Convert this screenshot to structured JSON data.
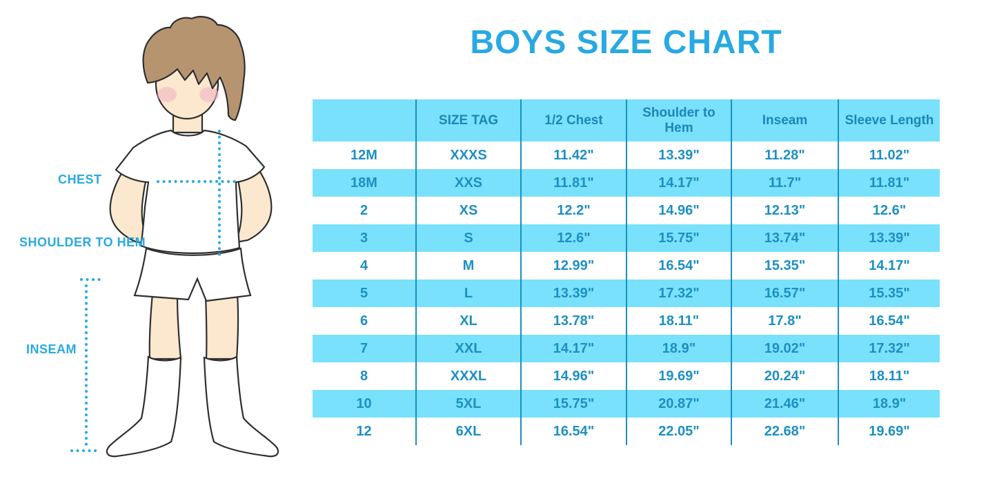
{
  "title": "BOYS SIZE CHART",
  "colors": {
    "title_blue": "#29A9E1",
    "row_highlight_blue": "#79E1FB",
    "cell_text_blue": "#1D8FC2",
    "grid_line_blue": "#1B8FC0",
    "dotted_line_blue": "#29ABE2",
    "hair_brown": "#B79470",
    "skin_tone": "#FBE8CE",
    "blush_pink": "#F2B9C6"
  },
  "figure": {
    "labels": {
      "chest": "CHEST",
      "shoulder_to_hem": "SHOULDER TO HEM",
      "inseam": "INSEAM"
    }
  },
  "table": {
    "headers": [
      "",
      "SIZE TAG",
      "1/2 Chest",
      "Shoulder to Hem",
      "Inseam",
      "Sleeve Length"
    ],
    "rows": [
      [
        "12M",
        "XXXS",
        "11.42\"",
        "13.39\"",
        "11.28\"",
        "11.02\""
      ],
      [
        "18M",
        "XXS",
        "11.81\"",
        "14.17\"",
        "11.7\"",
        "11.81\""
      ],
      [
        "2",
        "XS",
        "12.2\"",
        "14.96\"",
        "12.13\"",
        "12.6\""
      ],
      [
        "3",
        "S",
        "12.6\"",
        "15.75\"",
        "13.74\"",
        "13.39\""
      ],
      [
        "4",
        "M",
        "12.99\"",
        "16.54\"",
        "15.35\"",
        "14.17\""
      ],
      [
        "5",
        "L",
        "13.39\"",
        "17.32\"",
        "16.57\"",
        "15.35\""
      ],
      [
        "6",
        "XL",
        "13.78\"",
        "18.11\"",
        "17.8\"",
        "16.54\""
      ],
      [
        "7",
        "XXL",
        "14.17\"",
        "18.9\"",
        "19.02\"",
        "17.32\""
      ],
      [
        "8",
        "XXXL",
        "14.96\"",
        "19.69\"",
        "20.24\"",
        "18.11\""
      ],
      [
        "10",
        "5XL",
        "15.75\"",
        "20.87\"",
        "21.46\"",
        "18.9\""
      ],
      [
        "12",
        "6XL",
        "16.54\"",
        "22.05\"",
        "22.68\"",
        "19.69\""
      ]
    ]
  }
}
